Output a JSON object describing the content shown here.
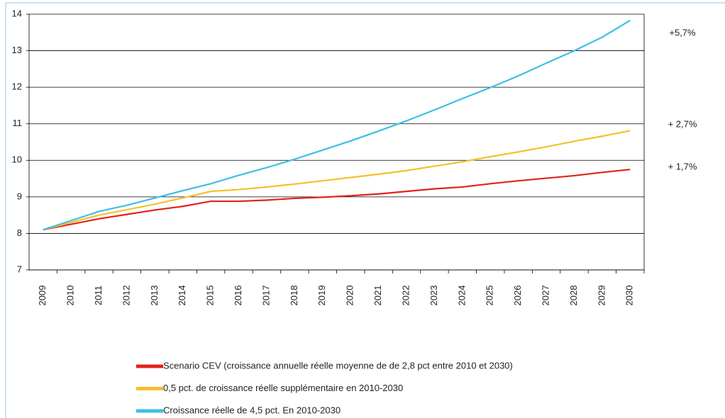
{
  "chart_data": {
    "type": "line",
    "categories": [
      "2009",
      "2010",
      "2011",
      "2012",
      "2013",
      "2014",
      "2015",
      "2016",
      "2017",
      "2018",
      "2019",
      "2020",
      "2021",
      "2022",
      "2023",
      "2024",
      "2025",
      "2026",
      "2027",
      "2028",
      "2029",
      "2030"
    ],
    "series": [
      {
        "name": "Scenario CEV (croissance annuelle réelle moyenne de de 2,8 pct entre 2010 et  2030)",
        "color": "#e2231a",
        "values": [
          8.1,
          8.25,
          8.4,
          8.52,
          8.64,
          8.74,
          8.88,
          8.88,
          8.91,
          8.96,
          8.99,
          9.03,
          9.08,
          9.15,
          9.22,
          9.27,
          9.36,
          9.44,
          9.51,
          9.58,
          9.67,
          9.75
        ]
      },
      {
        "name": "0,5 pct. de croissance réelle supplémentaire en  2010-2030",
        "color": "#f5c02c",
        "values": [
          8.1,
          8.3,
          8.5,
          8.65,
          8.8,
          8.97,
          9.15,
          9.2,
          9.27,
          9.35,
          9.44,
          9.53,
          9.62,
          9.72,
          9.84,
          9.96,
          10.1,
          10.23,
          10.37,
          10.52,
          10.66,
          10.81
        ]
      },
      {
        "name": "Croissance réelle de 4,5 pct. En  2010-2030",
        "color": "#3dbfe8",
        "values": [
          8.1,
          8.35,
          8.6,
          8.77,
          8.97,
          9.17,
          9.36,
          9.59,
          9.8,
          10.03,
          10.28,
          10.53,
          10.8,
          11.08,
          11.38,
          11.69,
          11.99,
          12.31,
          12.66,
          13.0,
          13.37,
          13.83
        ]
      }
    ],
    "annotations": [
      "+5,7%",
      "+ 2,7%",
      "+ 1,7%"
    ],
    "ylim": [
      7,
      14
    ],
    "yticks": [
      7,
      8,
      9,
      10,
      11,
      12,
      13,
      14
    ],
    "grid": true
  }
}
